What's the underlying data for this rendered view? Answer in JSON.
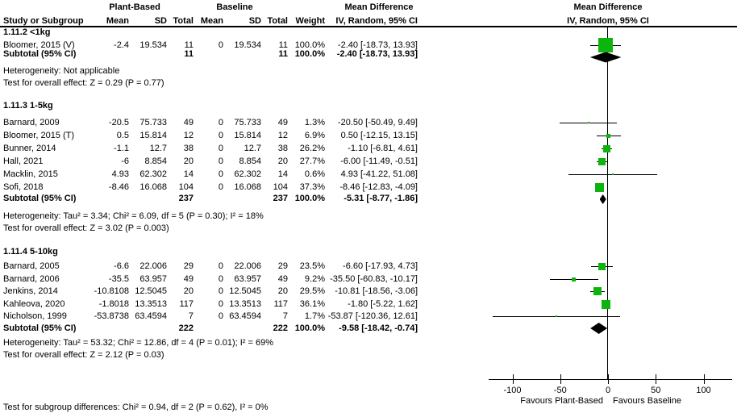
{
  "header": {
    "group_plant": "Plant-Based",
    "group_baseline": "Baseline",
    "md_title": "Mean Difference",
    "md_subtitle": "IV, Random, 95% CI",
    "plot_title": "Mean Difference",
    "plot_subtitle": "IV, Random, 95% CI",
    "col_study": "Study or Subgroup",
    "col_mean": "Mean",
    "col_sd": "SD",
    "col_total": "Total",
    "col_weight": "Weight"
  },
  "colors": {
    "effect_square_green": "#0db40d",
    "diamond_black": "#000000",
    "line_black": "#000000"
  },
  "footer_note": "Test for subgroup differences: Chi² = 0.94, df = 2 (P = 0.62), I² = 0%",
  "chart_data": {
    "type": "scatter",
    "title": "Mean Difference IV, Random, 95% CI",
    "x_axis": {
      "ticks": [
        -100,
        -50,
        0,
        50,
        100
      ],
      "min": -126,
      "max": 130,
      "zero_line": true,
      "favours_left": "Favours Plant-Based",
      "favours_right": "Favours Baseline"
    },
    "subgroups": [
      {
        "title": "1.11.2 <1kg",
        "studies": [
          {
            "study": "Bloomer, 2015 (V)",
            "pb_mean": "-2.4",
            "pb_sd": "19.534",
            "pb_total": "11",
            "bl_mean": "0",
            "bl_sd": "19.534",
            "bl_total": "11",
            "weight": "100.0%",
            "ci_label": "-2.40 [-18.73, 13.93]",
            "md": -2.4,
            "ci_lo": -18.73,
            "ci_hi": 13.93,
            "weight_pct": 100.0
          }
        ],
        "subtotal": {
          "label": "Subtotal (95% CI)",
          "pb_total": "11",
          "bl_total": "11",
          "weight": "100.0%",
          "ci_label": "-2.40 [-18.73, 13.93]",
          "md": -2.4,
          "ci_lo": -18.73,
          "ci_hi": 13.93
        },
        "heterogeneity": "Heterogeneity: Not applicable",
        "overall_test": "Test for overall effect: Z = 0.29 (P = 0.77)"
      },
      {
        "title": "1.11.3 1-5kg",
        "studies": [
          {
            "study": "Barnard, 2009",
            "pb_mean": "-20.5",
            "pb_sd": "75.733",
            "pb_total": "49",
            "bl_mean": "0",
            "bl_sd": "75.733",
            "bl_total": "49",
            "weight": "1.3%",
            "ci_label": "-20.50 [-50.49, 9.49]",
            "md": -20.5,
            "ci_lo": -50.49,
            "ci_hi": 9.49,
            "weight_pct": 1.3
          },
          {
            "study": "Bloomer, 2015 (T)",
            "pb_mean": "0.5",
            "pb_sd": "15.814",
            "pb_total": "12",
            "bl_mean": "0",
            "bl_sd": "15.814",
            "bl_total": "12",
            "weight": "6.9%",
            "ci_label": "0.50 [-12.15, 13.15]",
            "md": 0.5,
            "ci_lo": -12.15,
            "ci_hi": 13.15,
            "weight_pct": 6.9
          },
          {
            "study": "Bunner, 2014",
            "pb_mean": "-1.1",
            "pb_sd": "12.7",
            "pb_total": "38",
            "bl_mean": "0",
            "bl_sd": "12.7",
            "bl_total": "38",
            "weight": "26.2%",
            "ci_label": "-1.10 [-6.81, 4.61]",
            "md": -1.1,
            "ci_lo": -6.81,
            "ci_hi": 4.61,
            "weight_pct": 26.2
          },
          {
            "study": "Hall, 2021",
            "pb_mean": "-6",
            "pb_sd": "8.854",
            "pb_total": "20",
            "bl_mean": "0",
            "bl_sd": "8.854",
            "bl_total": "20",
            "weight": "27.7%",
            "ci_label": "-6.00 [-11.49, -0.51]",
            "md": -6.0,
            "ci_lo": -11.49,
            "ci_hi": -0.51,
            "weight_pct": 27.7
          },
          {
            "study": "Macklin, 2015",
            "pb_mean": "4.93",
            "pb_sd": "62.302",
            "pb_total": "14",
            "bl_mean": "0",
            "bl_sd": "62.302",
            "bl_total": "14",
            "weight": "0.6%",
            "ci_label": "4.93 [-41.22, 51.08]",
            "md": 4.93,
            "ci_lo": -41.22,
            "ci_hi": 51.08,
            "weight_pct": 0.6
          },
          {
            "study": "Sofi, 2018",
            "pb_mean": "-8.46",
            "pb_sd": "16.068",
            "pb_total": "104",
            "bl_mean": "0",
            "bl_sd": "16.068",
            "bl_total": "104",
            "weight": "37.3%",
            "ci_label": "-8.46 [-12.83, -4.09]",
            "md": -8.46,
            "ci_lo": -12.83,
            "ci_hi": -4.09,
            "weight_pct": 37.3
          }
        ],
        "subtotal": {
          "label": "Subtotal (95% CI)",
          "pb_total": "237",
          "bl_total": "237",
          "weight": "100.0%",
          "ci_label": "-5.31 [-8.77, -1.86]",
          "md": -5.31,
          "ci_lo": -8.77,
          "ci_hi": -1.86
        },
        "heterogeneity": "Heterogeneity: Tau² = 3.34; Chi² = 6.09, df = 5 (P = 0.30); I² = 18%",
        "overall_test": "Test for overall effect: Z = 3.02 (P = 0.003)"
      },
      {
        "title": "1.11.4 5-10kg",
        "studies": [
          {
            "study": "Barnard, 2005",
            "pb_mean": "-6.6",
            "pb_sd": "22.006",
            "pb_total": "29",
            "bl_mean": "0",
            "bl_sd": "22.006",
            "bl_total": "29",
            "weight": "23.5%",
            "ci_label": "-6.60 [-17.93, 4.73]",
            "md": -6.6,
            "ci_lo": -17.93,
            "ci_hi": 4.73,
            "weight_pct": 23.5
          },
          {
            "study": "Barnard, 2006",
            "pb_mean": "-35.5",
            "pb_sd": "63.957",
            "pb_total": "49",
            "bl_mean": "0",
            "bl_sd": "63.957",
            "bl_total": "49",
            "weight": "9.2%",
            "ci_label": "-35.50 [-60.83, -10.17]",
            "md": -35.5,
            "ci_lo": -60.83,
            "ci_hi": -10.17,
            "weight_pct": 9.2
          },
          {
            "study": "Jenkins, 2014",
            "pb_mean": "-10.8108",
            "pb_sd": "12.5045",
            "pb_total": "20",
            "bl_mean": "0",
            "bl_sd": "12.5045",
            "bl_total": "20",
            "weight": "29.5%",
            "ci_label": "-10.81 [-18.56, -3.06]",
            "md": -10.81,
            "ci_lo": -18.56,
            "ci_hi": -3.06,
            "weight_pct": 29.5
          },
          {
            "study": "Kahleova, 2020",
            "pb_mean": "-1.8018",
            "pb_sd": "13.3513",
            "pb_total": "117",
            "bl_mean": "0",
            "bl_sd": "13.3513",
            "bl_total": "117",
            "weight": "36.1%",
            "ci_label": "-1.80 [-5.22, 1.62]",
            "md": -1.8,
            "ci_lo": -5.22,
            "ci_hi": 1.62,
            "weight_pct": 36.1
          },
          {
            "study": "Nicholson, 1999",
            "pb_mean": "-53.8738",
            "pb_sd": "63.4594",
            "pb_total": "7",
            "bl_mean": "0",
            "bl_sd": "63.4594",
            "bl_total": "7",
            "weight": "1.7%",
            "ci_label": "-53.87 [-120.36, 12.61]",
            "md": -53.87,
            "ci_lo": -120.36,
            "ci_hi": 12.61,
            "weight_pct": 1.7
          }
        ],
        "subtotal": {
          "label": "Subtotal (95% CI)",
          "pb_total": "222",
          "bl_total": "222",
          "weight": "100.0%",
          "ci_label": "-9.58 [-18.42, -0.74]",
          "md": -9.58,
          "ci_lo": -18.42,
          "ci_hi": -0.74
        },
        "heterogeneity": "Heterogeneity: Tau² = 53.32; Chi² = 12.86, df = 4 (P = 0.01); I² = 69%",
        "overall_test": "Test for overall effect: Z = 2.12 (P = 0.03)"
      }
    ]
  }
}
